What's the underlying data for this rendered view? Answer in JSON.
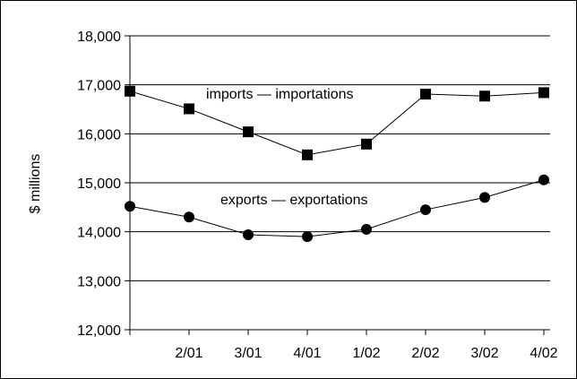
{
  "chart_data": {
    "type": "line",
    "title": "",
    "xlabel": "",
    "ylabel": "$ millions",
    "categories": [
      "",
      "2/01",
      "3/01",
      "4/01",
      "1/02",
      "2/02",
      "3/02",
      "4/02"
    ],
    "ylim": [
      12000,
      18000
    ],
    "yticks": [
      12000,
      13000,
      14000,
      15000,
      16000,
      17000,
      18000
    ],
    "ytick_labels": [
      "12,000",
      "13,000",
      "14,000",
      "15,000",
      "16,000",
      "17,000",
      "18,000"
    ],
    "grid": true,
    "series": [
      {
        "name": "imports — importations",
        "marker": "square",
        "color": "#000000",
        "values": [
          16870,
          16510,
          16040,
          15570,
          15790,
          16810,
          16770,
          16840
        ]
      },
      {
        "name": "exports — exportations",
        "marker": "circle",
        "color": "#000000",
        "values": [
          14520,
          14300,
          13940,
          13900,
          14050,
          14450,
          14700,
          15060
        ]
      }
    ]
  }
}
